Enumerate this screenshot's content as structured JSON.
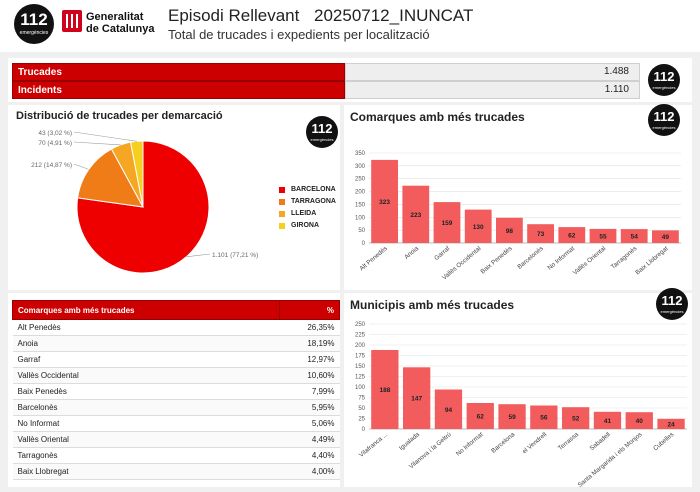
{
  "header": {
    "logo": {
      "number": "112",
      "caption": "emergències"
    },
    "generalitat": {
      "line1": "Generalitat",
      "line2": "de Catalunya"
    },
    "title": "Episodi Rellevant",
    "code": "20250712_INUNCAT",
    "subtitle": "Total de trucades i expedients per localització"
  },
  "kpis": [
    {
      "label": "Trucades",
      "value": "1.488"
    },
    {
      "label": "Incidents",
      "value": "1.110"
    }
  ],
  "badge": {
    "number": "112",
    "caption": "emergències"
  },
  "colors": {
    "red": "#ee0000",
    "orange": "#f07c18",
    "amber": "#f5a623",
    "yellow": "#f5d020",
    "bar": "#f25c5c",
    "header_red": "#cc0000"
  },
  "pie": {
    "title": "Distribució de trucades per demarcació",
    "chart_data": {
      "type": "pie",
      "slices": [
        {
          "name": "BARCELONA",
          "value": 1101,
          "label": "1.101 (77,21 %)",
          "color": "#ee0000"
        },
        {
          "name": "TARRAGONA",
          "value": 212,
          "label": "212 (14,87 %)",
          "color": "#f07c18"
        },
        {
          "name": "LLEIDA",
          "value": 70,
          "label": "70 (4,91 %)",
          "color": "#f5a623"
        },
        {
          "name": "GIRONA",
          "value": 43,
          "label": "43 (3,02 %)",
          "color": "#f5d020"
        }
      ],
      "legend": "right"
    }
  },
  "bar1": {
    "title": "Comarques amb més trucades",
    "chart_data": {
      "type": "bar",
      "categories": [
        "Alt Penedès",
        "Anoia",
        "Garraf",
        "Vallès Occidental",
        "Baix Penedès",
        "Barcelonès",
        "No Informat",
        "Vallès Oriental",
        "Tarragonès",
        "Baix Llobregat"
      ],
      "values": [
        323,
        223,
        159,
        130,
        98,
        73,
        62,
        55,
        54,
        49
      ],
      "ylim": [
        0,
        350
      ],
      "yticks": [
        "0",
        "50",
        "100",
        "150",
        "200",
        "250",
        "300",
        "350"
      ],
      "grid": true
    }
  },
  "bar2": {
    "title": "Municipis amb més trucades",
    "chart_data": {
      "type": "bar",
      "categories": [
        "Vilafranca ...",
        "Igualada",
        "Vilanova i la Geltrú",
        "No Informat",
        "Barcelona",
        "el Vendrell",
        "Terrassa",
        "Sabadell",
        "Santa Margarida i els Monjos",
        "Cubelles"
      ],
      "values": [
        188,
        147,
        94,
        62,
        59,
        56,
        52,
        41,
        40,
        24
      ],
      "ylim": [
        0,
        250
      ],
      "yticks": [
        "0",
        "25",
        "50",
        "75",
        "100",
        "125",
        "150",
        "175",
        "200",
        "225",
        "250"
      ],
      "grid": true
    }
  },
  "table": {
    "headers": [
      "Comarques amb més trucades",
      "%"
    ],
    "rows": [
      {
        "name": "Alt Penedès",
        "pct": "26,35%"
      },
      {
        "name": "Anoia",
        "pct": "18,19%"
      },
      {
        "name": "Garraf",
        "pct": "12,97%"
      },
      {
        "name": "Vallès Occidental",
        "pct": "10,60%"
      },
      {
        "name": "Baix Penedès",
        "pct": "7,99%"
      },
      {
        "name": "Barcelonès",
        "pct": "5,95%"
      },
      {
        "name": "No Informat",
        "pct": "5,06%"
      },
      {
        "name": "Vallès Oriental",
        "pct": "4,49%"
      },
      {
        "name": "Tarragonès",
        "pct": "4,40%"
      },
      {
        "name": "Baix Llobregat",
        "pct": "4,00%"
      }
    ]
  }
}
